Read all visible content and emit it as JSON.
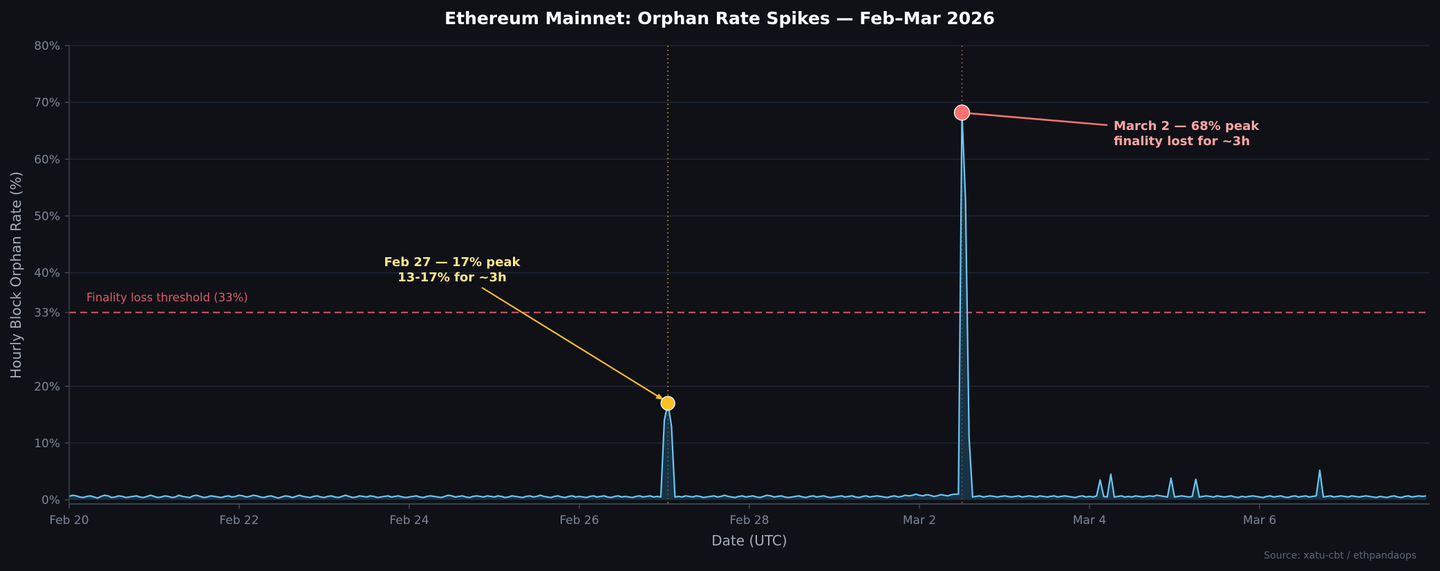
{
  "chart_data": {
    "type": "line",
    "title": "Ethereum Mainnet: Orphan Rate Spikes — Feb–Mar 2026",
    "xlabel": "Date (UTC)",
    "ylabel": "Hourly Block Orphan Rate (%)",
    "source": "Source: xatu-cbt / ethpandaops",
    "x_start": "2026-02-20 00:00 UTC",
    "x_step": "1 hour",
    "xlim": [
      "2026-02-20",
      "2026-03-08"
    ],
    "ylim": [
      -1,
      80
    ],
    "y_ticks": [
      0,
      10,
      20,
      33,
      40,
      50,
      60,
      70,
      80
    ],
    "y_tick_labels": [
      "0%",
      "10%",
      "20%",
      "33%",
      "40%",
      "50%",
      "60%",
      "70%",
      "80%"
    ],
    "x_ticks": [
      "2026-02-20",
      "2026-02-22",
      "2026-02-24",
      "2026-02-26",
      "2026-02-28",
      "2026-03-02",
      "2026-03-04",
      "2026-03-06"
    ],
    "x_tick_labels": [
      "Feb 20",
      "Feb 22",
      "Feb 24",
      "Feb 26",
      "Feb 28",
      "Mar 2",
      "Mar 4",
      "Mar 6"
    ],
    "grid": true,
    "colors": {
      "background": "#0f1117",
      "line": "#6ec6f0",
      "fill": "#1c4a63",
      "grid": "#1f2735",
      "threshold": "#e05a6a",
      "feb27": "#fbbf24",
      "mar2": "#f87171"
    },
    "threshold": {
      "value": 33,
      "label": "Finality loss threshold (33%)"
    },
    "series": [
      {
        "values": [
          0.6,
          0.8,
          0.7,
          0.5,
          0.4,
          0.6,
          0.7,
          0.5,
          0.3,
          0.6,
          0.8,
          0.7,
          0.4,
          0.5,
          0.7,
          0.6,
          0.4,
          0.5,
          0.6,
          0.7,
          0.5,
          0.4,
          0.6,
          0.8,
          0.6,
          0.4,
          0.5,
          0.7,
          0.6,
          0.4,
          0.5,
          0.8,
          0.6,
          0.5,
          0.4,
          0.7,
          0.8,
          0.6,
          0.4,
          0.5,
          0.7,
          0.6,
          0.5,
          0.4,
          0.6,
          0.7,
          0.5,
          0.6,
          0.8,
          0.7,
          0.5,
          0.6,
          0.8,
          0.7,
          0.5,
          0.4,
          0.6,
          0.7,
          0.5,
          0.3,
          0.5,
          0.7,
          0.6,
          0.4,
          0.6,
          0.8,
          0.6,
          0.5,
          0.4,
          0.6,
          0.7,
          0.5,
          0.4,
          0.6,
          0.7,
          0.5,
          0.4,
          0.6,
          0.8,
          0.6,
          0.4,
          0.5,
          0.7,
          0.6,
          0.5,
          0.7,
          0.6,
          0.4,
          0.5,
          0.6,
          0.7,
          0.5,
          0.6,
          0.7,
          0.5,
          0.4,
          0.5,
          0.6,
          0.7,
          0.5,
          0.4,
          0.6,
          0.7,
          0.6,
          0.5,
          0.4,
          0.6,
          0.8,
          0.7,
          0.5,
          0.6,
          0.7,
          0.5,
          0.4,
          0.6,
          0.7,
          0.6,
          0.5,
          0.7,
          0.6,
          0.5,
          0.7,
          0.6,
          0.4,
          0.5,
          0.7,
          0.6,
          0.5,
          0.4,
          0.6,
          0.7,
          0.5,
          0.6,
          0.8,
          0.6,
          0.5,
          0.4,
          0.6,
          0.7,
          0.5,
          0.4,
          0.6,
          0.7,
          0.5,
          0.6,
          0.5,
          0.4,
          0.6,
          0.7,
          0.5,
          0.6,
          0.7,
          0.5,
          0.4,
          0.6,
          0.7,
          0.5,
          0.6,
          0.5,
          0.4,
          0.6,
          0.7,
          0.5,
          0.6,
          0.7,
          0.5,
          0.6,
          0.5,
          14.0,
          17.0,
          13.0,
          0.5,
          0.6,
          0.5,
          0.7,
          0.6,
          0.5,
          0.7,
          0.6,
          0.4,
          0.5,
          0.6,
          0.7,
          0.5,
          0.6,
          0.8,
          0.6,
          0.5,
          0.4,
          0.6,
          0.7,
          0.5,
          0.6,
          0.7,
          0.5,
          0.4,
          0.6,
          0.8,
          0.7,
          0.5,
          0.6,
          0.7,
          0.5,
          0.4,
          0.5,
          0.6,
          0.7,
          0.5,
          0.4,
          0.6,
          0.7,
          0.5,
          0.6,
          0.7,
          0.5,
          0.4,
          0.5,
          0.6,
          0.7,
          0.5,
          0.6,
          0.7,
          0.5,
          0.4,
          0.6,
          0.7,
          0.5,
          0.6,
          0.7,
          0.6,
          0.5,
          0.4,
          0.6,
          0.7,
          0.5,
          0.6,
          0.8,
          0.7,
          0.8,
          1.0,
          0.8,
          0.7,
          0.9,
          0.8,
          0.6,
          0.7,
          0.9,
          0.8,
          0.7,
          0.9,
          1.0,
          1.0,
          68.2,
          53.0,
          11.0,
          0.5,
          0.6,
          0.7,
          0.5,
          0.6,
          0.7,
          0.6,
          0.5,
          0.6,
          0.7,
          0.6,
          0.5,
          0.6,
          0.7,
          0.5,
          0.6,
          0.7,
          0.6,
          0.5,
          0.7,
          0.6,
          0.5,
          0.6,
          0.7,
          0.5,
          0.6,
          0.7,
          0.6,
          0.5,
          0.4,
          0.6,
          0.7,
          0.5,
          0.6,
          0.5,
          0.7,
          3.5,
          0.6,
          0.5,
          4.5,
          0.5,
          0.6,
          0.7,
          0.5,
          0.6,
          0.5,
          0.7,
          0.6,
          0.5,
          0.6,
          0.7,
          0.6,
          0.8,
          0.7,
          0.6,
          0.5,
          3.8,
          0.5,
          0.6,
          0.7,
          0.6,
          0.5,
          0.6,
          3.6,
          0.5,
          0.6,
          0.7,
          0.6,
          0.5,
          0.7,
          0.6,
          0.5,
          0.6,
          0.7,
          0.5,
          0.4,
          0.6,
          0.5,
          0.6,
          0.7,
          0.6,
          0.5,
          0.4,
          0.6,
          0.7,
          0.5,
          0.6,
          0.7,
          0.5,
          0.4,
          0.6,
          0.7,
          0.5,
          0.6,
          0.7,
          0.5,
          0.6,
          0.7,
          5.2,
          0.5,
          0.6,
          0.7,
          0.5,
          0.6,
          0.7,
          0.6,
          0.5,
          0.7,
          0.6,
          0.5,
          0.6,
          0.7,
          0.6,
          0.5,
          0.4,
          0.6,
          0.5,
          0.4,
          0.6,
          0.7,
          0.5,
          0.4,
          0.6,
          0.7,
          0.5,
          0.6,
          0.7,
          0.6,
          0.7
        ]
      }
    ],
    "annotations": [
      {
        "date": "2026-02-27 01:00",
        "value": 17.0,
        "lines": [
          "Feb 27 — 17% peak",
          "13-17% for ~3h"
        ],
        "color": "#fde68a",
        "marker_color": "#fbbf24"
      },
      {
        "date": "2026-03-02 12:00",
        "value": 68.2,
        "lines": [
          "March 2 — 68% peak",
          "finality lost for ~3h"
        ],
        "color": "#fca5a5",
        "marker_color": "#f87171"
      }
    ]
  }
}
